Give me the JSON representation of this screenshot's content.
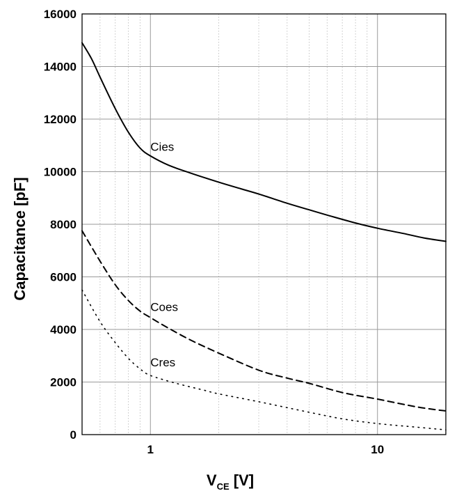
{
  "chart_data": {
    "type": "line",
    "xscale": "log",
    "xlim": [
      0.5,
      20
    ],
    "ylim": [
      0,
      16000
    ],
    "grid": true,
    "xlabel_main": "V",
    "xlabel_sub": "CE",
    "xlabel_unit": " [V]",
    "ylabel": "Capacitance [pF]",
    "x_ticks": [
      {
        "value": 1,
        "label": "1"
      },
      {
        "value": 10,
        "label": "10"
      }
    ],
    "y_ticks": [
      {
        "value": 0,
        "label": "0"
      },
      {
        "value": 2000,
        "label": "2000"
      },
      {
        "value": 4000,
        "label": "4000"
      },
      {
        "value": 6000,
        "label": "6000"
      },
      {
        "value": 8000,
        "label": "8000"
      },
      {
        "value": 10000,
        "label": "10000"
      },
      {
        "value": 12000,
        "label": "12000"
      },
      {
        "value": 14000,
        "label": "14000"
      },
      {
        "value": 16000,
        "label": "16000"
      }
    ],
    "series": [
      {
        "name": "Cies",
        "style": "solid",
        "label_at": {
          "x": 1,
          "y": 10800
        },
        "points": [
          [
            0.5,
            14900
          ],
          [
            0.55,
            14300
          ],
          [
            0.6,
            13600
          ],
          [
            0.7,
            12400
          ],
          [
            0.8,
            11500
          ],
          [
            0.9,
            10900
          ],
          [
            1.0,
            10600
          ],
          [
            1.2,
            10250
          ],
          [
            1.5,
            9950
          ],
          [
            2.0,
            9600
          ],
          [
            2.5,
            9350
          ],
          [
            3.0,
            9150
          ],
          [
            4.0,
            8800
          ],
          [
            5.0,
            8550
          ],
          [
            6.0,
            8350
          ],
          [
            8.0,
            8050
          ],
          [
            10.0,
            7850
          ],
          [
            13.0,
            7650
          ],
          [
            16.0,
            7480
          ],
          [
            20.0,
            7350
          ]
        ]
      },
      {
        "name": "Coes",
        "style": "dashed",
        "label_at": {
          "x": 1,
          "y": 4700
        },
        "points": [
          [
            0.5,
            7750
          ],
          [
            0.6,
            6600
          ],
          [
            0.7,
            5700
          ],
          [
            0.8,
            5100
          ],
          [
            0.9,
            4700
          ],
          [
            1.0,
            4450
          ],
          [
            1.2,
            4050
          ],
          [
            1.5,
            3600
          ],
          [
            2.0,
            3100
          ],
          [
            3.0,
            2450
          ],
          [
            4.0,
            2150
          ],
          [
            5.0,
            1950
          ],
          [
            7.0,
            1600
          ],
          [
            10.0,
            1350
          ],
          [
            15.0,
            1050
          ],
          [
            20.0,
            900
          ]
        ]
      },
      {
        "name": "Cres",
        "style": "dotted",
        "label_at": {
          "x": 1,
          "y": 2600
        },
        "points": [
          [
            0.5,
            5500
          ],
          [
            0.6,
            4300
          ],
          [
            0.7,
            3500
          ],
          [
            0.8,
            2900
          ],
          [
            0.9,
            2500
          ],
          [
            1.0,
            2250
          ],
          [
            1.3,
            1950
          ],
          [
            1.7,
            1700
          ],
          [
            2.0,
            1550
          ],
          [
            3.0,
            1250
          ],
          [
            5.0,
            850
          ],
          [
            7.0,
            600
          ],
          [
            10.0,
            420
          ],
          [
            15.0,
            280
          ],
          [
            20.0,
            180
          ]
        ]
      }
    ]
  }
}
